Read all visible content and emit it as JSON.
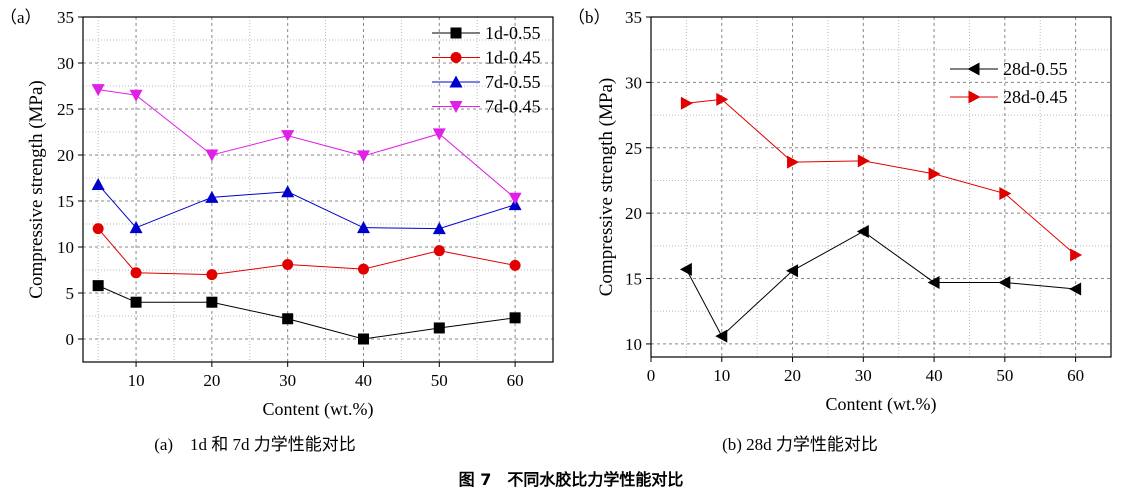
{
  "figure_caption": "图 7　不同水胶比力学性能对比",
  "chart_data": [
    {
      "type": "line",
      "panel_label": "（a）",
      "subcaption": "(a)　1d 和 7d 力学性能对比",
      "xlabel": "Content (wt.%)",
      "ylabel": "Compressive strength (MPa)",
      "xlim": [
        3,
        65
      ],
      "ylim": [
        -2.5,
        35
      ],
      "xticks": [
        10,
        20,
        30,
        40,
        50,
        60
      ],
      "yticks": [
        0,
        5,
        10,
        15,
        20,
        25,
        30,
        35
      ],
      "grid": true,
      "legend": "top-right",
      "x": [
        5,
        10,
        20,
        30,
        40,
        50,
        60
      ],
      "series": [
        {
          "name": "1d-0.55",
          "color": "#000000",
          "marker": "square",
          "values": [
            5.8,
            4.0,
            4.0,
            2.2,
            0.0,
            1.2,
            2.3
          ]
        },
        {
          "name": "1d-0.45",
          "color": "#e00000",
          "marker": "circle",
          "values": [
            12.0,
            7.2,
            7.0,
            8.1,
            7.6,
            9.6,
            8.0
          ]
        },
        {
          "name": "7d-0.55",
          "color": "#0000cc",
          "marker": "triangle-up",
          "values": [
            16.8,
            12.1,
            15.4,
            16.0,
            12.1,
            12.0,
            14.6
          ]
        },
        {
          "name": "7d-0.45",
          "color": "#e020e8",
          "marker": "triangle-down",
          "values": [
            27.1,
            26.5,
            20.0,
            22.1,
            19.9,
            22.3,
            15.3
          ]
        }
      ]
    },
    {
      "type": "line",
      "panel_label": "（b）",
      "subcaption": "(b) 28d 力学性能对比",
      "xlabel": "Content (wt.%)",
      "ylabel": "Compressive strength (MPa)",
      "xlim": [
        0,
        65
      ],
      "ylim": [
        9,
        35
      ],
      "xticks": [
        0,
        10,
        20,
        30,
        40,
        50,
        60
      ],
      "yticks": [
        10,
        15,
        20,
        25,
        30,
        35
      ],
      "grid": true,
      "legend": "top-right",
      "x": [
        5,
        10,
        20,
        30,
        40,
        50,
        60
      ],
      "series": [
        {
          "name": "28d-0.55",
          "color": "#000000",
          "marker": "triangle-left",
          "values": [
            15.7,
            10.6,
            15.6,
            18.6,
            14.7,
            14.7,
            14.2
          ]
        },
        {
          "name": "28d-0.45",
          "color": "#e00000",
          "marker": "triangle-right",
          "values": [
            28.4,
            28.7,
            23.9,
            24.0,
            23.0,
            21.5,
            16.8
          ]
        }
      ]
    }
  ]
}
